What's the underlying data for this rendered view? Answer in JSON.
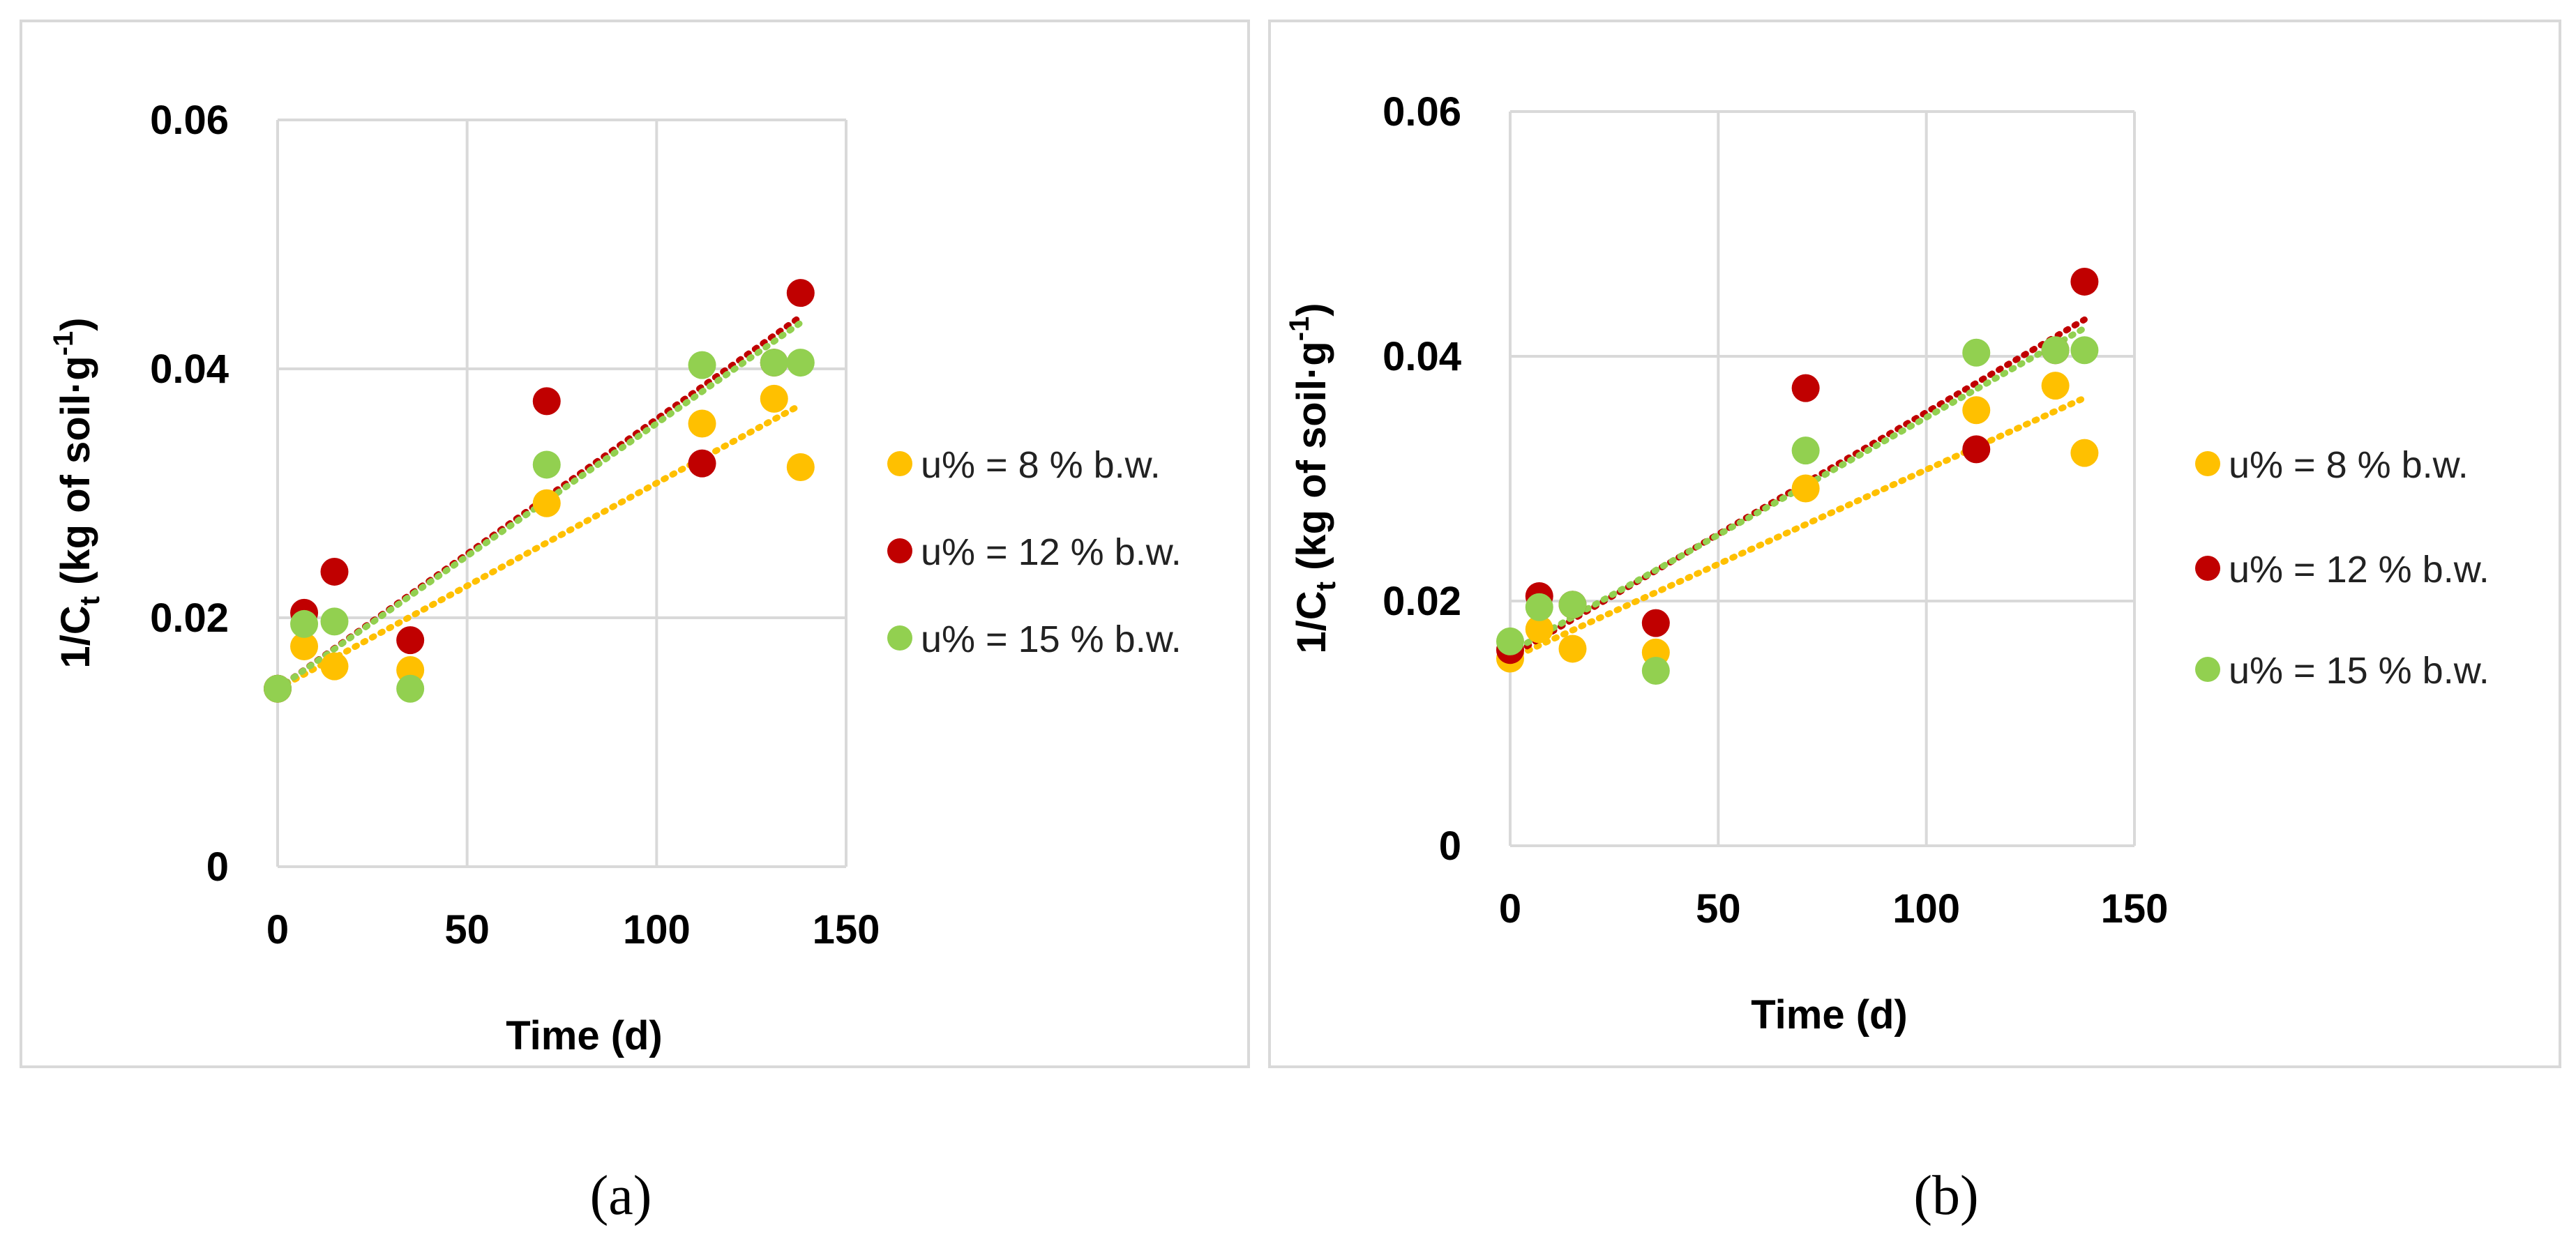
{
  "captions": [
    "(a)",
    "(b)"
  ],
  "chart_data": [
    {
      "type": "scatter",
      "panel": "(a)",
      "xlabel": "Time (d)",
      "ylabel_main": "1/C",
      "ylabel_sub": "t",
      "ylabel_rest": " (kg of soil·g",
      "ylabel_sup": "-1",
      "ylabel_end": ")",
      "xlim": [
        0,
        150
      ],
      "ylim": [
        0,
        0.06
      ],
      "x_ticks": [
        0,
        50,
        100,
        150
      ],
      "y_ticks": [
        0,
        0.02,
        0.04,
        0.06
      ],
      "x_tick_labels": [
        "0",
        "50",
        "100",
        "150"
      ],
      "y_tick_labels": [
        "0",
        "0.02",
        "0.04",
        "0.06"
      ],
      "grid": true,
      "trendlines": "linear, dotted",
      "legend_position": "right",
      "series": [
        {
          "name": "u% = 8 % b.w.",
          "color": "#FFC000",
          "x": [
            0,
            7,
            15,
            35,
            71,
            112,
            131,
            138
          ],
          "y": [
            0.0143,
            0.0177,
            0.0161,
            0.0158,
            0.0292,
            0.0356,
            0.0376,
            0.0321
          ],
          "trend": [
            0.0143,
            0.0371
          ]
        },
        {
          "name": "u% = 12 % b.w.",
          "color": "#C00000",
          "x": [
            0,
            7,
            15,
            35,
            71,
            112,
            131,
            138
          ],
          "y": [
            0.0143,
            0.0204,
            0.0237,
            0.0182,
            0.0374,
            0.0324,
            0.0405,
            0.0461
          ],
          "trend": [
            0.0143,
            0.0442
          ]
        },
        {
          "name": "u% = 15 % b.w.",
          "color": "#92D050",
          "x": [
            0,
            7,
            15,
            35,
            71,
            112,
            131,
            138
          ],
          "y": [
            0.0143,
            0.0195,
            0.0197,
            0.0143,
            0.0323,
            0.0403,
            0.0405,
            0.0405
          ],
          "trend": [
            0.0143,
            0.0437
          ]
        }
      ]
    },
    {
      "type": "scatter",
      "panel": "(b)",
      "xlabel": "Time (d)",
      "ylabel_main": "1/C",
      "ylabel_sub": "t",
      "ylabel_rest": " (kg of soil·g",
      "ylabel_sup": "-1",
      "ylabel_end": ")",
      "xlim": [
        0,
        150
      ],
      "ylim": [
        0,
        0.06
      ],
      "x_ticks": [
        0,
        50,
        100,
        150
      ],
      "y_ticks": [
        0,
        0.02,
        0.04,
        0.06
      ],
      "x_tick_labels": [
        "0",
        "50",
        "100",
        "150"
      ],
      "y_tick_labels": [
        "0",
        "0.02",
        "0.04",
        "0.06"
      ],
      "grid": true,
      "trendlines": "linear, dotted",
      "legend_position": "right",
      "series": [
        {
          "name": "u% = 8 % b.w.",
          "color": "#FFC000",
          "x": [
            0,
            7,
            15,
            35,
            71,
            112,
            131,
            138
          ],
          "y": [
            0.0153,
            0.0177,
            0.0161,
            0.0158,
            0.0292,
            0.0356,
            0.0376,
            0.0321
          ],
          "trend": [
            0.0153,
            0.0366
          ]
        },
        {
          "name": "u% = 12 % b.w.",
          "color": "#C00000",
          "x": [
            0,
            7,
            15,
            35,
            71,
            112,
            131,
            138
          ],
          "y": [
            0.016,
            0.0204,
            0.0197,
            0.0182,
            0.0374,
            0.0324,
            0.0405,
            0.0461
          ],
          "trend": [
            0.0155,
            0.043
          ]
        },
        {
          "name": "u% = 15 % b.w.",
          "color": "#92D050",
          "x": [
            0,
            7,
            15,
            35,
            71,
            112,
            131,
            138
          ],
          "y": [
            0.0167,
            0.0195,
            0.0197,
            0.0143,
            0.0323,
            0.0403,
            0.0405,
            0.0405
          ],
          "trend": [
            0.0158,
            0.0423
          ]
        }
      ]
    }
  ]
}
